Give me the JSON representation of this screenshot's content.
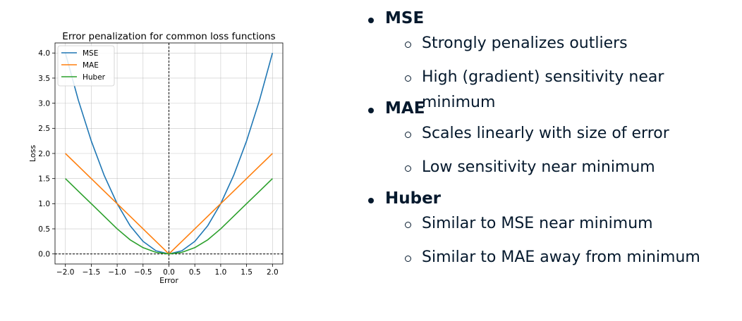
{
  "chart_data": {
    "type": "line",
    "title": "Error penalization for common loss functions",
    "xlabel": "Error",
    "ylabel": "Loss",
    "xlim": [
      -2.2,
      2.2
    ],
    "ylim": [
      -0.2,
      4.2
    ],
    "xticks": [
      -2.0,
      -1.5,
      -1.0,
      -0.5,
      0.0,
      0.5,
      1.0,
      1.5,
      2.0
    ],
    "yticks": [
      0.0,
      0.5,
      1.0,
      1.5,
      2.0,
      2.5,
      3.0,
      3.5,
      4.0
    ],
    "xtick_labels": [
      "−2.0",
      "−1.5",
      "−1.0",
      "−0.5",
      "0.0",
      "0.5",
      "1.0",
      "1.5",
      "2.0"
    ],
    "ytick_labels": [
      "0.0",
      "0.5",
      "1.0",
      "1.5",
      "2.0",
      "2.5",
      "3.0",
      "3.5",
      "4.0"
    ],
    "grid": true,
    "legend_position": "upper-left",
    "reference_lines": [
      {
        "axis": "x",
        "value": 0,
        "style": "dashed"
      },
      {
        "axis": "y",
        "value": 0,
        "style": "dashed"
      }
    ],
    "x": [
      -2.0,
      -1.75,
      -1.5,
      -1.25,
      -1.0,
      -0.75,
      -0.5,
      -0.25,
      0.0,
      0.25,
      0.5,
      0.75,
      1.0,
      1.25,
      1.5,
      1.75,
      2.0
    ],
    "series": [
      {
        "name": "MSE",
        "color": "#1f77b4",
        "values": [
          4.0,
          3.0625,
          2.25,
          1.5625,
          1.0,
          0.5625,
          0.25,
          0.0625,
          0.0,
          0.0625,
          0.25,
          0.5625,
          1.0,
          1.5625,
          2.25,
          3.0625,
          4.0
        ]
      },
      {
        "name": "MAE",
        "color": "#ff7f0e",
        "values": [
          2.0,
          1.75,
          1.5,
          1.25,
          1.0,
          0.75,
          0.5,
          0.25,
          0.0,
          0.25,
          0.5,
          0.75,
          1.0,
          1.25,
          1.5,
          1.75,
          2.0
        ]
      },
      {
        "name": "Huber",
        "color": "#2ca02c",
        "values": [
          1.5,
          1.25,
          1.0,
          0.75,
          0.5,
          0.28125,
          0.125,
          0.03125,
          0.0,
          0.03125,
          0.125,
          0.28125,
          0.5,
          0.75,
          1.0,
          1.25,
          1.5
        ]
      }
    ]
  },
  "bullets": [
    {
      "label": "MSE",
      "subs": [
        "Strongly penalizes outliers",
        "High (gradient) sensitivity near minimum"
      ]
    },
    {
      "label": "MAE",
      "subs": [
        "Scales linearly with size of error",
        "Low sensitivity near minimum"
      ]
    },
    {
      "label": "Huber",
      "subs": [
        "Similar to MSE near minimum",
        "Similar to MAE away from minimum"
      ]
    }
  ]
}
